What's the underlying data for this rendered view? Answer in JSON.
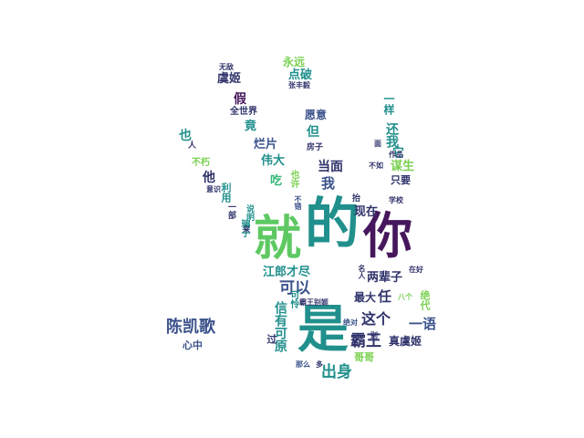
{
  "colors": {
    "dark_purple": "#46175c",
    "indigo": "#3b528b",
    "teal": "#21908d",
    "green": "#35b779",
    "lime": "#7ad151",
    "navy": "#30336b"
  },
  "words": {
    "jiu": "就",
    "de": "的",
    "ni": "你",
    "shi": "是",
    "chen_kai_ge": "陈凯歌",
    "xin_zhong": "心中",
    "ba_wang": "霸王",
    "chu_shen": "出身",
    "yu_ji": "虞姬",
    "zhen_yu_ji": "真虞姬",
    "jiang_lang": "江郎才尽",
    "ke_yi": "可以",
    "zhe_ge": "这个",
    "liang_bei_zi": "两辈子",
    "xian_zai": "现在",
    "dang_mian": "当面",
    "wo": "我",
    "wei_da": "伟大",
    "lan_pian": "烂片",
    "yong_yuan": "永远",
    "dian_po": "点破",
    "jia": "假",
    "quan_shi_jie": "全世界",
    "jing": "竟",
    "ye": "也",
    "ren": "人",
    "bu_xiu": "不朽",
    "ta": "他",
    "chi": "吃",
    "mian_shi": "面",
    "yuan_yi": "愿意",
    "dan": "但",
    "fang_zi": "房子",
    "yi_yang": "一样",
    "zhi_shang": "只要",
    "zuo_pin": "作品",
    "jiang_zhe": "张丰毅",
    "wu_di": "无敌",
    "yi_yu": "一语",
    "zui_da": "最大",
    "ren_he": "任",
    "ke_lian": "可怜",
    "pian_zi": "骗子",
    "zhi_ming": "信有可原",
    "ba_wang_bie_ji": "霸王别姬",
    "zai_hao": "在好",
    "na_me": "那么",
    "ming_ren": "名人",
    "guo": "过",
    "li_yong": "利用",
    "hao_ji": "绝对",
    "ge_ge": "哥哥",
    "jue_dai": "绝代",
    "ye_xu": "也许",
    "ta2": "它",
    "mou_sheng": "谋生",
    "bu_zhi": "不错",
    "huan_jing": "还我",
    "tai": "抬",
    "xue_xiao": "学校",
    "jing_wu": "不如",
    "yi_ge": "一部",
    "shuo_ming": "说明",
    "yi_shi": "意识",
    "ba_ge": "八个",
    "duo": "多",
    "lai": "来",
    "bie": "别"
  }
}
